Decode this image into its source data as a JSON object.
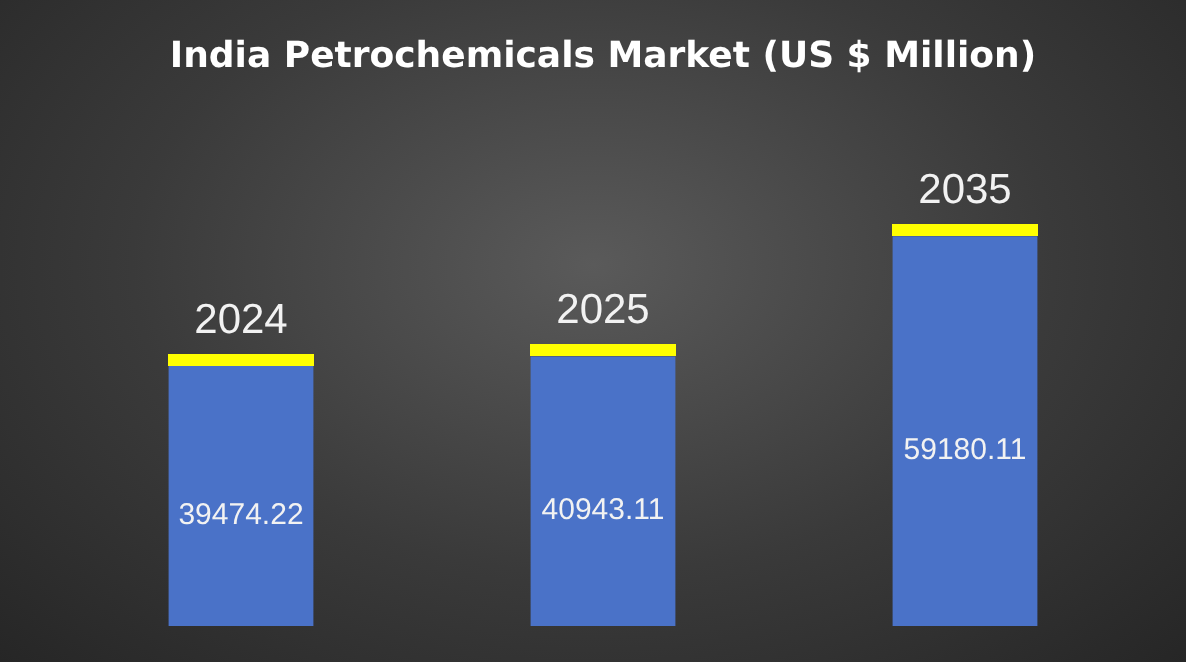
{
  "chart_data": {
    "type": "bar",
    "title": "India Petrochemicals Market (US $ Million)",
    "categories": [
      "2024",
      "2025",
      "2035"
    ],
    "values": [
      39474.22,
      40943.11,
      59180.11
    ],
    "color": "#4a72c8",
    "data_labels": true
  }
}
